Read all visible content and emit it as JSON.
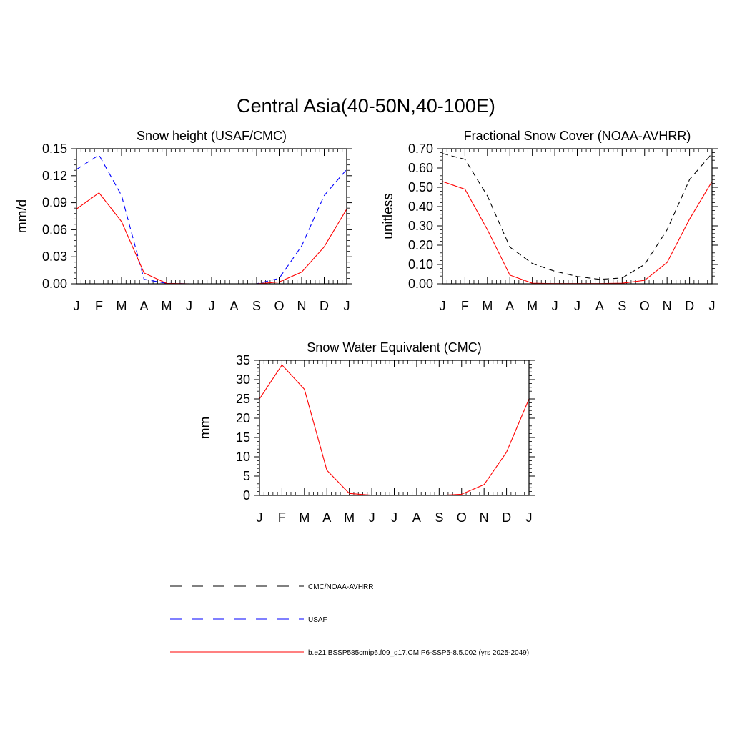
{
  "title": "Central Asia(40-50N,40-100E)",
  "months": [
    "J",
    "F",
    "M",
    "A",
    "M",
    "J",
    "J",
    "A",
    "S",
    "O",
    "N",
    "D",
    "J"
  ],
  "colors": {
    "model": "#ff0000",
    "usaf": "#0000ff",
    "obs": "#000000"
  },
  "legend": [
    {
      "label": "CMC/NOAA-AVHRR",
      "style": "dashed",
      "color": "#000000"
    },
    {
      "label": "USAF",
      "style": "dashed",
      "color": "#0000ff"
    },
    {
      "label": "b.e21.BSSP585cmip6.f09_g17.CMIP6-SSP5-8.5.002 (yrs 2025-2049)",
      "style": "solid",
      "color": "#ff0000"
    }
  ],
  "chart_data": [
    {
      "type": "line",
      "title": "Snow height (USAF/CMC)",
      "ylabel": "mm/d",
      "ylim": [
        0,
        0.15
      ],
      "yticks": [
        "0.00",
        "0.03",
        "0.06",
        "0.09",
        "0.12",
        "0.15"
      ],
      "series": [
        {
          "name": "CMC/NOAA-AVHRR",
          "style": "dashed",
          "color": "#000000",
          "values": [
            0,
            0,
            0,
            0,
            0,
            0,
            0,
            0,
            0,
            0,
            0,
            0,
            0
          ]
        },
        {
          "name": "USAF",
          "style": "dashed",
          "color": "#0000ff",
          "values": [
            0.127,
            0.143,
            0.098,
            0.005,
            0.0005,
            0,
            0,
            0,
            0,
            0.006,
            0.042,
            0.098,
            0.127
          ]
        },
        {
          "name": "b.e21.BSSP585cmip6.f09_g17.CMIP6-SSP5-8.5.002 (yrs 2025-2049)",
          "style": "solid",
          "color": "#ff0000",
          "values": [
            0.083,
            0.101,
            0.069,
            0.012,
            0.0005,
            0,
            0,
            0,
            0,
            0.002,
            0.013,
            0.041,
            0.083
          ]
        }
      ]
    },
    {
      "type": "line",
      "title": "Fractional Snow Cover (NOAA-AVHRR)",
      "ylabel": "unitless",
      "ylim": [
        0,
        0.7
      ],
      "yticks": [
        "0.00",
        "0.10",
        "0.20",
        "0.30",
        "0.40",
        "0.50",
        "0.60",
        "0.70"
      ],
      "series": [
        {
          "name": "CMC/NOAA-AVHRR",
          "style": "dashed",
          "color": "#000000",
          "values": [
            0.675,
            0.645,
            0.455,
            0.19,
            0.105,
            0.065,
            0.038,
            0.023,
            0.03,
            0.1,
            0.28,
            0.54,
            0.675
          ]
        },
        {
          "name": "b.e21.BSSP585cmip6.f09_g17.CMIP6-SSP5-8.5.002 (yrs 2025-2049)",
          "style": "solid",
          "color": "#ff0000",
          "values": [
            0.53,
            0.49,
            0.28,
            0.045,
            0.003,
            0.001,
            0.001,
            0.001,
            0.003,
            0.018,
            0.11,
            0.335,
            0.53
          ]
        }
      ]
    },
    {
      "type": "line",
      "title": "Snow Water Equivalent (CMC)",
      "ylabel": "mm",
      "ylim": [
        0,
        35
      ],
      "yticks": [
        "0",
        "5",
        "10",
        "15",
        "20",
        "25",
        "30",
        "35"
      ],
      "series": [
        {
          "name": "CMC/NOAA-AVHRR",
          "style": "dashed",
          "color": "#000000",
          "values": [
            0,
            0,
            0,
            0,
            0,
            0,
            0,
            0,
            0,
            0,
            0,
            0,
            0
          ]
        },
        {
          "name": "b.e21.BSSP585cmip6.f09_g17.CMIP6-SSP5-8.5.002 (yrs 2025-2049)",
          "style": "solid",
          "color": "#ff0000",
          "values": [
            25,
            33.8,
            27.5,
            6.5,
            0.5,
            0.05,
            0,
            0,
            0,
            0.3,
            2.8,
            11.2,
            25
          ]
        }
      ]
    }
  ]
}
